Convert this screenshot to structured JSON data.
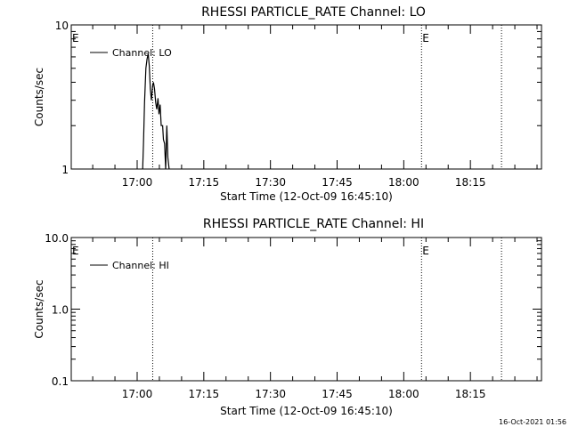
{
  "timestamp": "16-Oct-2021 01:56",
  "chart_data": [
    {
      "type": "line",
      "title": "RHESSI PARTICLE_RATE Channel: LO",
      "xlabel": "Start Time (12-Oct-09 16:45:10)",
      "ylabel": "Counts/sec",
      "y_scale": "log",
      "ylim": [
        1,
        10
      ],
      "y_tick_labels": [
        "1",
        "10"
      ],
      "x_tick_labels": [
        "17:00",
        "17:15",
        "17:30",
        "17:45",
        "18:00",
        "18:15"
      ],
      "x_range": [
        "16:45:10",
        "18:31:00"
      ],
      "grid": false,
      "legend_position": "top-left",
      "series": [
        {
          "name": "Channel: LO",
          "x": [
            "17:01:14",
            "17:01:25",
            "17:01:40",
            "17:01:58",
            "17:02:14",
            "17:02:29",
            "17:02:43",
            "17:02:58",
            "17:03:12",
            "17:03:29",
            "17:03:40",
            "17:03:54",
            "17:04:10",
            "17:04:25",
            "17:04:41",
            "17:04:55",
            "17:05:10",
            "17:05:25",
            "17:05:44",
            "17:05:55",
            "17:06:10",
            "17:06:25",
            "17:06:40",
            "17:06:55",
            "17:07:12"
          ],
          "y": [
            1.0,
            1.5,
            2.9,
            5.0,
            5.8,
            6.3,
            5.2,
            3.6,
            3.0,
            3.8,
            4.0,
            3.6,
            2.9,
            2.6,
            3.1,
            2.4,
            2.8,
            2.0,
            2.0,
            1.6,
            1.5,
            1.0,
            2.0,
            1.2,
            1.0
          ]
        }
      ],
      "markers": [
        {
          "label": "E",
          "time": "16:45:10"
        },
        {
          "label": "",
          "time": "17:03:30"
        },
        {
          "label": "E",
          "time": "18:04:00"
        },
        {
          "label": "",
          "time": "18:22:00"
        }
      ]
    },
    {
      "type": "line",
      "title": "RHESSI PARTICLE_RATE Channel: HI",
      "xlabel": "Start Time (12-Oct-09 16:45:10)",
      "ylabel": "Counts/sec",
      "y_scale": "log",
      "ylim": [
        0.1,
        10
      ],
      "y_tick_labels": [
        "0.1",
        "1.0",
        "10.0"
      ],
      "x_tick_labels": [
        "17:00",
        "17:15",
        "17:30",
        "17:45",
        "18:00",
        "18:15"
      ],
      "x_range": [
        "16:45:10",
        "18:31:00"
      ],
      "grid": false,
      "legend_position": "top-left",
      "series": [
        {
          "name": "Channel: HI",
          "x": [],
          "y": []
        }
      ],
      "markers": [
        {
          "label": "E",
          "time": "16:45:10"
        },
        {
          "label": "",
          "time": "17:03:30"
        },
        {
          "label": "E",
          "time": "18:04:00"
        },
        {
          "label": "",
          "time": "18:22:00"
        }
      ]
    }
  ]
}
